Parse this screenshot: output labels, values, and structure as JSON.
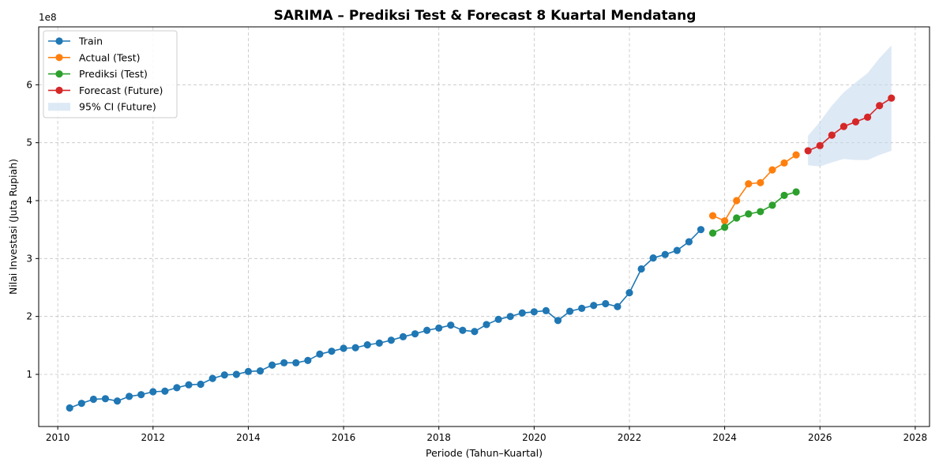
{
  "chart_data": {
    "type": "line",
    "title": "SARIMA – Prediksi Test & Forecast 8 Kuartal Mendatang",
    "xlabel": "Periode (Tahun–Kuartal)",
    "ylabel": "Nilai Investasi (Juta Rupiah)",
    "y_offset_label": "1e8",
    "xlim": [
      2009.6,
      2028.3
    ],
    "ylim": [
      0.1,
      7.0
    ],
    "y_scale_factor": 100000000,
    "x_ticks": [
      2010,
      2012,
      2014,
      2016,
      2018,
      2020,
      2022,
      2024,
      2026,
      2028
    ],
    "y_ticks": [
      1,
      2,
      3,
      4,
      5,
      6
    ],
    "grid": true,
    "legend_position": "top-left",
    "series": [
      {
        "name": "Train",
        "color": "#1f77b4",
        "x": [
          2010.25,
          2010.5,
          2010.75,
          2011.0,
          2011.25,
          2011.5,
          2011.75,
          2012.0,
          2012.25,
          2012.5,
          2012.75,
          2013.0,
          2013.25,
          2013.5,
          2013.75,
          2014.0,
          2014.25,
          2014.5,
          2014.75,
          2015.0,
          2015.25,
          2015.5,
          2015.75,
          2016.0,
          2016.25,
          2016.5,
          2016.75,
          2017.0,
          2017.25,
          2017.5,
          2017.75,
          2018.0,
          2018.25,
          2018.5,
          2018.75,
          2019.0,
          2019.25,
          2019.5,
          2019.75,
          2020.0,
          2020.25,
          2020.5,
          2020.75,
          2021.0,
          2021.25,
          2021.5,
          2021.75,
          2022.0,
          2022.25,
          2022.5,
          2022.75,
          2023.0,
          2023.25,
          2023.5
        ],
        "values": [
          0.42,
          0.5,
          0.57,
          0.58,
          0.54,
          0.62,
          0.65,
          0.7,
          0.71,
          0.77,
          0.82,
          0.83,
          0.93,
          0.99,
          1.0,
          1.05,
          1.06,
          1.16,
          1.2,
          1.2,
          1.24,
          1.35,
          1.4,
          1.45,
          1.46,
          1.51,
          1.54,
          1.59,
          1.65,
          1.7,
          1.76,
          1.8,
          1.85,
          1.76,
          1.74,
          1.86,
          1.95,
          2.0,
          2.06,
          2.08,
          2.1,
          1.93,
          2.09,
          2.14,
          2.19,
          2.22,
          2.17,
          2.41,
          2.82,
          3.01,
          3.07,
          3.14,
          3.29,
          3.5
        ]
      },
      {
        "name": "Actual (Test)",
        "color": "#ff7f0e",
        "x": [
          2023.75,
          2024.0,
          2024.25,
          2024.5,
          2024.75,
          2025.0,
          2025.25,
          2025.5
        ],
        "values": [
          3.74,
          3.65,
          4.0,
          4.29,
          4.31,
          4.53,
          4.65,
          4.79
        ]
      },
      {
        "name": "Prediksi (Test)",
        "color": "#2ca02c",
        "x": [
          2023.75,
          2024.0,
          2024.25,
          2024.5,
          2024.75,
          2025.0,
          2025.25,
          2025.5
        ],
        "values": [
          3.44,
          3.54,
          3.7,
          3.77,
          3.81,
          3.92,
          4.09,
          4.15
        ]
      },
      {
        "name": "Forecast (Future)",
        "color": "#d62728",
        "x": [
          2025.75,
          2026.0,
          2026.25,
          2026.5,
          2026.75,
          2027.0,
          2027.25,
          2027.5
        ],
        "values": [
          4.86,
          4.95,
          5.13,
          5.28,
          5.36,
          5.44,
          5.64,
          5.77
        ]
      }
    ],
    "confidence_band": {
      "name": "95% CI (Future)",
      "color": "#c6dbef",
      "x": [
        2025.75,
        2026.0,
        2026.25,
        2026.5,
        2026.75,
        2027.0,
        2027.25,
        2027.5
      ],
      "lower": [
        4.61,
        4.59,
        4.66,
        4.72,
        4.7,
        4.7,
        4.79,
        4.86
      ],
      "upper": [
        5.12,
        5.36,
        5.64,
        5.87,
        6.04,
        6.2,
        6.46,
        6.68
      ]
    }
  }
}
